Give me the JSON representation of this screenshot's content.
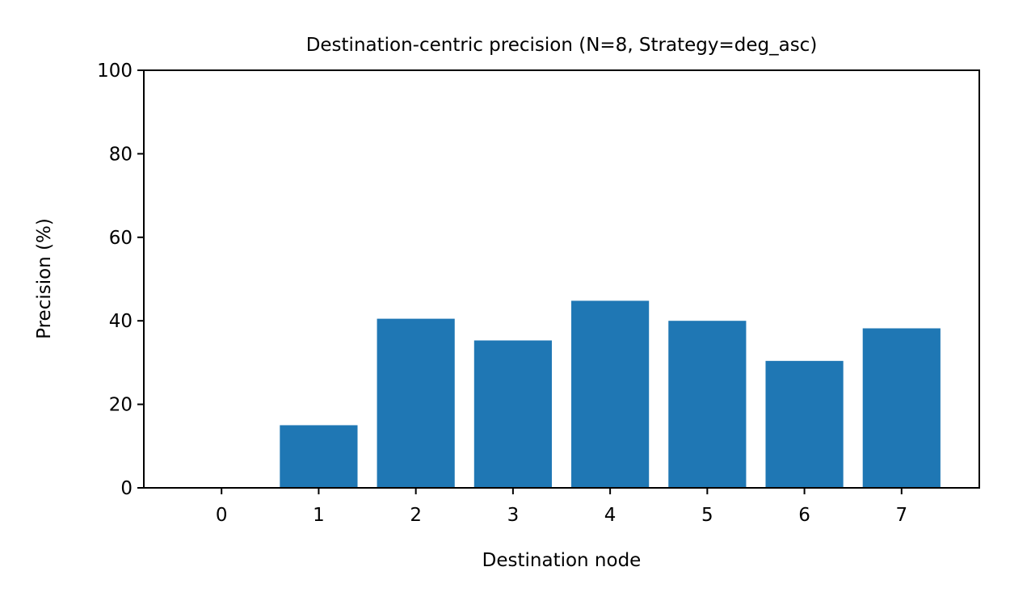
{
  "chart_data": {
    "type": "bar",
    "title": "Destination-centric precision (N=8, Strategy=deg_asc)",
    "xlabel": "Destination node",
    "ylabel": "Precision (%)",
    "categories": [
      "0",
      "1",
      "2",
      "3",
      "4",
      "5",
      "6",
      "7"
    ],
    "values": [
      0,
      15,
      40.5,
      35.3,
      44.8,
      40,
      30.4,
      38.2
    ],
    "ylim": [
      0,
      100
    ],
    "yticks": [
      "0",
      "20",
      "40",
      "60",
      "80",
      "100"
    ],
    "grid": false,
    "legend": "none",
    "bar_color": "#1f77b4"
  }
}
